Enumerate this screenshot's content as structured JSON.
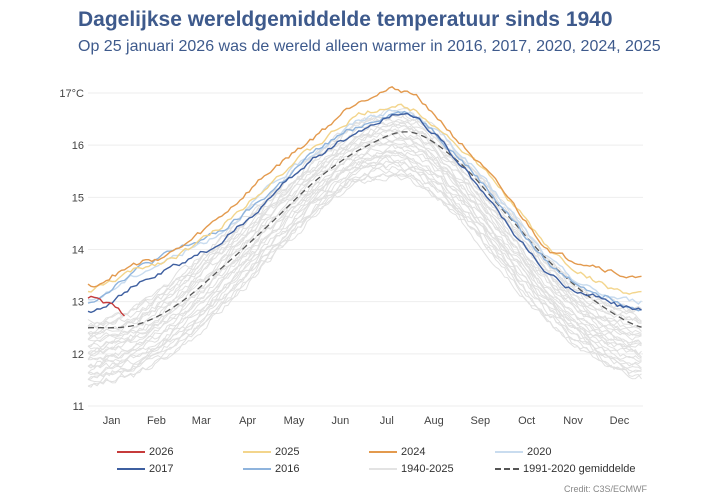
{
  "title": "Dagelijkse wereldgemiddelde temperatuur sinds 1940",
  "subtitle": "Op 25 januari 2026 was de wereld alleen warmer in 2016, 2017, 2020, 2024, 2025",
  "credit": "Credit: C3S/ECMWF",
  "chart_data": {
    "type": "line",
    "ylim": [
      11,
      17
    ],
    "yticks": [
      {
        "v": 17,
        "label": "17°C"
      },
      {
        "v": 16,
        "label": "16"
      },
      {
        "v": 15,
        "label": "15"
      },
      {
        "v": 14,
        "label": "14"
      },
      {
        "v": 13,
        "label": "13"
      },
      {
        "v": 12,
        "label": "12"
      },
      {
        "v": 11,
        "label": "11"
      }
    ],
    "xticks": [
      "Jan",
      "Feb",
      "Mar",
      "Apr",
      "May",
      "Jun",
      "Jul",
      "Aug",
      "Sep",
      "Oct",
      "Nov",
      "Dec"
    ],
    "x_day_of_year": [
      1,
      32,
      60,
      91,
      121,
      152,
      182,
      213,
      244,
      274,
      305,
      335,
      366
    ],
    "grid": "horizontal",
    "legend_placement": "bottom",
    "background_band": {
      "name": "1940-2025",
      "color": "#e0e0e0",
      "min": [
        11.4,
        11.6,
        12.1,
        12.9,
        13.8,
        14.7,
        15.3,
        15.3,
        14.6,
        13.6,
        12.6,
        11.9,
        11.5
      ],
      "max": [
        12.6,
        12.9,
        13.5,
        14.3,
        15.1,
        15.9,
        16.5,
        16.6,
        15.9,
        14.9,
        13.8,
        13.1,
        12.9
      ]
    },
    "series": [
      {
        "name": "1940-2025",
        "color": "#e3e3e3",
        "legend_only": true
      },
      {
        "name": "1991-2020 gemiddelde",
        "color": "#555555",
        "dashed": true,
        "values": [
          12.5,
          12.55,
          12.95,
          13.7,
          14.5,
          15.35,
          15.95,
          16.25,
          15.7,
          14.75,
          13.75,
          13.0,
          12.5
        ]
      },
      {
        "name": "2020",
        "color": "#c9dcef",
        "values": [
          13.0,
          13.5,
          13.9,
          14.4,
          15.2,
          15.9,
          16.5,
          16.6,
          15.9,
          14.9,
          13.8,
          13.2,
          13.0
        ]
      },
      {
        "name": "2016",
        "color": "#8fb4dd",
        "values": [
          13.0,
          13.6,
          14.0,
          14.4,
          15.1,
          15.9,
          16.4,
          16.6,
          15.8,
          14.8,
          13.7,
          13.2,
          12.9
        ]
      },
      {
        "name": "2025",
        "color": "#f3d58c",
        "values": [
          13.2,
          13.6,
          13.9,
          14.5,
          15.3,
          16.0,
          16.6,
          16.7,
          16.0,
          15.1,
          14.0,
          13.4,
          13.1
        ]
      },
      {
        "name": "2017",
        "color": "#3e5fa0",
        "values": [
          12.8,
          13.3,
          13.7,
          14.2,
          15.0,
          15.8,
          16.3,
          16.6,
          15.7,
          14.6,
          13.5,
          13.1,
          12.8
        ]
      },
      {
        "name": "2024",
        "color": "#e39a4e",
        "values": [
          13.3,
          13.7,
          14.0,
          14.7,
          15.5,
          16.2,
          16.9,
          17.0,
          16.1,
          15.1,
          14.0,
          13.7,
          13.4
        ]
      },
      {
        "name": "2026",
        "color": "#c63b3b",
        "values": [
          13.1,
          13.0,
          12.9,
          12.75
        ],
        "days": [
          1,
          8,
          16,
          25
        ]
      }
    ]
  }
}
